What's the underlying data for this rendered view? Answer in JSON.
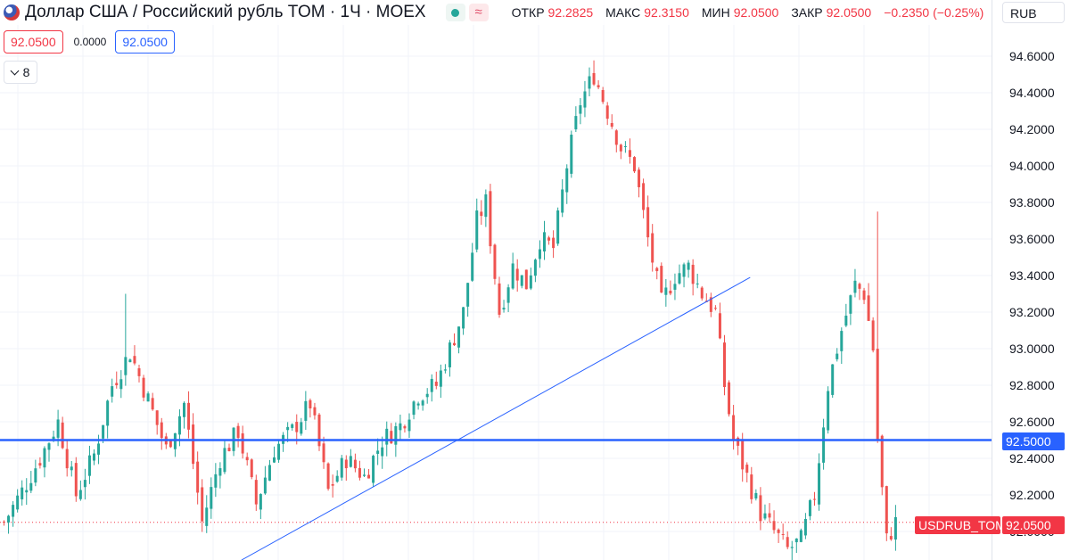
{
  "header": {
    "title": "Доллар США / Российский рубль TOM · 1Ч · MOEX",
    "ohlc": {
      "open_label": "ОТКР",
      "open": "92.2825",
      "high_label": "МАКС",
      "high": "92.3150",
      "low_label": "МИН",
      "low": "92.0500",
      "close_label": "ЗАКР",
      "close": "92.0500",
      "change": "−0.2350 (−0.25%)"
    },
    "currency": "RUB"
  },
  "trade": {
    "sell": "92.0500",
    "spread": "0.0000",
    "buy": "92.0500"
  },
  "indicators_toggle": {
    "count": "8"
  },
  "axis": {
    "ticks": [
      "94.6000",
      "94.4000",
      "94.2000",
      "94.0000",
      "93.8000",
      "93.6000",
      "93.4000",
      "93.2000",
      "93.0000",
      "92.8000",
      "92.6000",
      "92.4000",
      "92.2000",
      "92.0000"
    ]
  },
  "labels": {
    "horizontal_line": "92.5000",
    "symbol": "USDRUB_TOM",
    "last_price": "92.0500"
  },
  "colors": {
    "up": "#26a69a",
    "down": "#ef5350",
    "hline": "#2962ff",
    "trendline": "#2962ff",
    "price_line": "#f23645"
  },
  "chart_data": {
    "type": "candlestick",
    "title": "Доллар США / Российский рубль TOM · 1Ч · MOEX",
    "ylim": [
      92.0,
      94.6
    ],
    "y_ticks": [
      94.6,
      94.4,
      94.2,
      94.0,
      93.8,
      93.6,
      93.4,
      93.2,
      93.0,
      92.8,
      92.6,
      92.4,
      92.2,
      92.0
    ],
    "candle_count": 199,
    "close_path": [
      {
        "i": 0,
        "c": 92.05
      },
      {
        "i": 4,
        "c": 92.22
      },
      {
        "i": 8,
        "c": 92.4
      },
      {
        "i": 12,
        "c": 92.6
      },
      {
        "i": 16,
        "c": 92.2
      },
      {
        "i": 20,
        "c": 92.42
      },
      {
        "i": 24,
        "c": 92.8
      },
      {
        "i": 28,
        "c": 92.98
      },
      {
        "i": 32,
        "c": 92.72
      },
      {
        "i": 36,
        "c": 92.45
      },
      {
        "i": 40,
        "c": 92.7
      },
      {
        "i": 44,
        "c": 92.05
      },
      {
        "i": 48,
        "c": 92.4
      },
      {
        "i": 52,
        "c": 92.55
      },
      {
        "i": 56,
        "c": 92.15
      },
      {
        "i": 60,
        "c": 92.45
      },
      {
        "i": 64,
        "c": 92.55
      },
      {
        "i": 68,
        "c": 92.7
      },
      {
        "i": 72,
        "c": 92.22
      },
      {
        "i": 76,
        "c": 92.4
      },
      {
        "i": 80,
        "c": 92.3
      },
      {
        "i": 84,
        "c": 92.5
      },
      {
        "i": 88,
        "c": 92.58
      },
      {
        "i": 92,
        "c": 92.75
      },
      {
        "i": 96,
        "c": 92.8
      },
      {
        "i": 99,
        "c": 93.0
      },
      {
        "i": 102,
        "c": 93.2
      },
      {
        "i": 105,
        "c": 93.7
      },
      {
        "i": 107,
        "c": 93.8
      },
      {
        "i": 110,
        "c": 93.2
      },
      {
        "i": 113,
        "c": 93.45
      },
      {
        "i": 116,
        "c": 93.35
      },
      {
        "i": 119,
        "c": 93.6
      },
      {
        "i": 122,
        "c": 93.55
      },
      {
        "i": 125,
        "c": 94.0
      },
      {
        "i": 128,
        "c": 94.35
      },
      {
        "i": 131,
        "c": 94.5
      },
      {
        "i": 134,
        "c": 94.3
      },
      {
        "i": 137,
        "c": 94.1
      },
      {
        "i": 140,
        "c": 94.0
      },
      {
        "i": 143,
        "c": 93.6
      },
      {
        "i": 146,
        "c": 93.25
      },
      {
        "i": 149,
        "c": 93.4
      },
      {
        "i": 152,
        "c": 93.45
      },
      {
        "i": 155,
        "c": 93.3
      },
      {
        "i": 158,
        "c": 93.2
      },
      {
        "i": 160,
        "c": 92.8
      },
      {
        "i": 162,
        "c": 92.5
      },
      {
        "i": 165,
        "c": 92.3
      },
      {
        "i": 168,
        "c": 92.1
      },
      {
        "i": 171,
        "c": 92.0
      },
      {
        "i": 174,
        "c": 91.9
      },
      {
        "i": 177,
        "c": 91.95
      },
      {
        "i": 180,
        "c": 92.2
      },
      {
        "i": 183,
        "c": 92.8
      },
      {
        "i": 186,
        "c": 93.1
      },
      {
        "i": 189,
        "c": 93.35
      },
      {
        "i": 191,
        "c": 93.3
      },
      {
        "i": 193,
        "c": 93.0
      },
      {
        "i": 194,
        "c": 92.5
      },
      {
        "i": 196,
        "c": 91.95
      },
      {
        "i": 198,
        "c": 92.05
      }
    ],
    "spikes": [
      {
        "i": 27,
        "high": 93.3
      },
      {
        "i": 194,
        "high": 93.75
      }
    ],
    "horizontal_line": 92.5,
    "trend_line": {
      "from": {
        "i": 63,
        "y": 91.98
      },
      "to": {
        "i": 166,
        "y": 93.39
      }
    },
    "last_price": 92.05
  }
}
